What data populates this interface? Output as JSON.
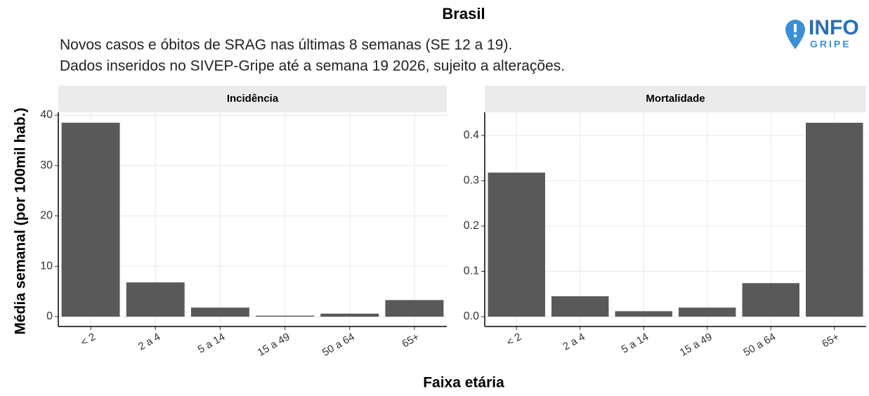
{
  "title": "Brasil",
  "subtitle": [
    "Novos casos e óbitos de SRAG nas últimas 8 semanas (SE 12 a 19).",
    "Dados inseridos no SIVEP-Gripe até a semana 19 2026, sujeito a alterações."
  ],
  "y_label": "Média semanal (por 100mil hab.)",
  "x_label": "Faixa etária",
  "logo": {
    "line1": "INFO",
    "line2": "GRIPE"
  },
  "chart_data": [
    {
      "type": "bar",
      "title": "Incidência",
      "categories": [
        "< 2",
        "2 a 4",
        "5 a 14",
        "15 a 49",
        "50 a 64",
        "65+"
      ],
      "values": [
        38.5,
        6.8,
        1.8,
        0.2,
        0.6,
        3.3
      ],
      "color": "#595959",
      "ylim": [
        -1.95,
        40.56
      ],
      "yticks": [
        0,
        10,
        20,
        30,
        40
      ],
      "grid": true
    },
    {
      "type": "bar",
      "title": "Mortalidade",
      "categories": [
        "< 2",
        "2 a 4",
        "5 a 14",
        "15 a 49",
        "50 a 64",
        "65+"
      ],
      "values": [
        0.318,
        0.045,
        0.012,
        0.02,
        0.074,
        0.428
      ],
      "color": "#595959",
      "ylim": [
        -0.0217,
        0.451
      ],
      "yticks": [
        {
          "value": 0,
          "label": "0.0"
        },
        0.1,
        0.2,
        0.3,
        0.4
      ],
      "grid": true
    }
  ]
}
